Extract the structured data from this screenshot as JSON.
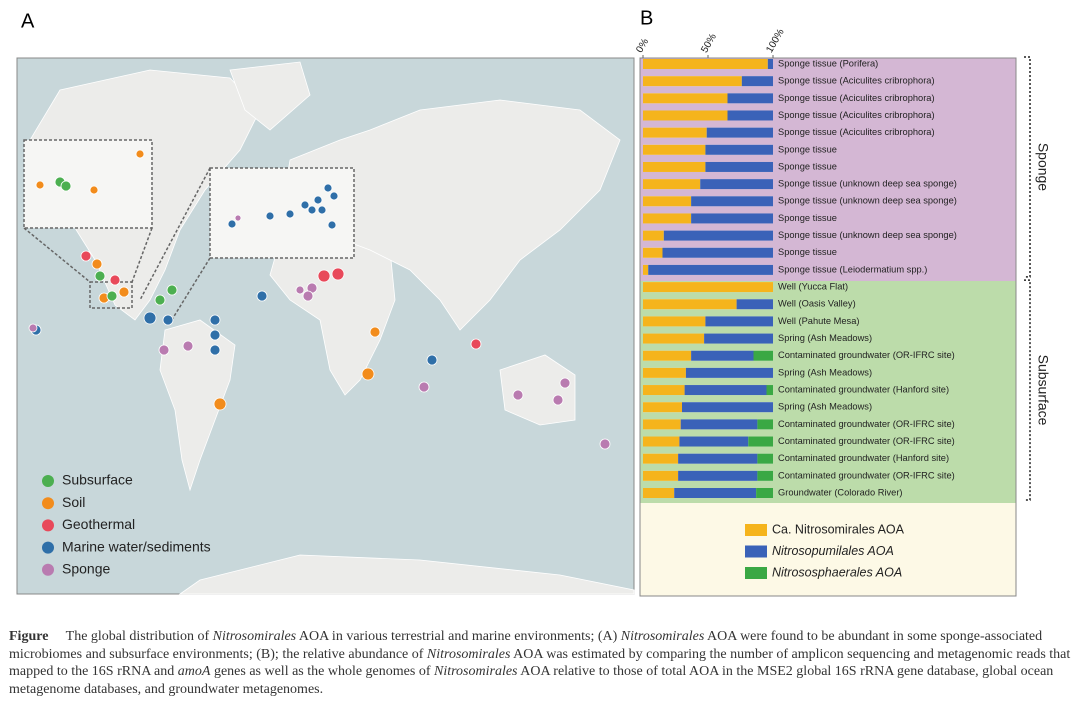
{
  "panel_a": {
    "label": "A",
    "legend": [
      {
        "name": "Subsurface",
        "color": "#4caf50"
      },
      {
        "name": "Soil",
        "color": "#f28c1c"
      },
      {
        "name": "Geothermal",
        "color": "#e8495a"
      },
      {
        "name": "Marine water/sediments",
        "color": "#2f6fa8"
      },
      {
        "name": "Sponge",
        "color": "#b97bb0"
      }
    ]
  },
  "chart_data": {
    "type": "stacked-barh",
    "label": "B",
    "categories": [
      "Sponge tissue (Porifera)",
      "Sponge tissue (Aciculites cribrophora)",
      "Sponge tissue (Aciculites cribrophora)",
      "Sponge tissue (Aciculites cribrophora)",
      "Sponge tissue (Aciculites cribrophora)",
      "Sponge tissue",
      "Sponge tissue",
      "Sponge tissue (unknown deep sea sponge)",
      "Sponge tissue (unknown deep sea sponge)",
      "Sponge tissue",
      "Sponge tissue (unknown deep sea sponge)",
      "Sponge tissue",
      "Sponge tissue (Leiodermatium spp.)",
      "Well (Yucca Flat)",
      "Well (Oasis Valley)",
      "Well (Pahute Mesa)",
      "Spring (Ash Meadows)",
      "Contaminated groundwater (OR-IFRC site)",
      "Spring (Ash Meadows)",
      "Contaminated groundwater (Hanford site)",
      "Spring (Ash Meadows)",
      "Contaminated groundwater (OR-IFRC site)",
      "Contaminated groundwater (OR-IFRC site)",
      "Contaminated groundwater (Hanford site)",
      "Contaminated groundwater (OR-IFRC site)",
      "Groundwater (Colorado River)"
    ],
    "series": [
      {
        "name": "Ca. Nitrosomirales AOA",
        "color": "#f5b41c",
        "values": [
          96,
          76,
          65,
          65,
          49,
          48,
          48,
          44,
          37,
          37,
          16,
          15,
          4,
          100,
          72,
          48,
          47,
          37,
          33,
          32,
          30,
          29,
          28,
          27,
          27,
          24
        ]
      },
      {
        "name": "Nitrosopumilales AOA",
        "color": "#3a62b8",
        "values": [
          4,
          24,
          35,
          35,
          51,
          52,
          52,
          56,
          63,
          63,
          84,
          85,
          96,
          0,
          28,
          52,
          53,
          48,
          67,
          63,
          70,
          59,
          53,
          61,
          61,
          63
        ]
      },
      {
        "name": "Nitrososphaerales AOA",
        "color": "#3aa844",
        "values": [
          0,
          0,
          0,
          0,
          0,
          0,
          0,
          0,
          0,
          0,
          0,
          0,
          0,
          0,
          0,
          0,
          0,
          15,
          0,
          5,
          0,
          12,
          19,
          12,
          12,
          13
        ]
      }
    ],
    "xlim": [
      0,
      100
    ],
    "xticks": [
      {
        "value": 0,
        "label": "0%"
      },
      {
        "value": 50,
        "label": "50%"
      },
      {
        "value": 100,
        "label": "100%"
      }
    ],
    "annotations": [
      "Sponge",
      "Subsurface"
    ]
  },
  "caption": [
    {
      "text": "Figure",
      "bold": true
    },
    {
      "text": "     The global distribution of "
    },
    {
      "text": "Nitrosomirales",
      "italic": true
    },
    {
      "text": " AOA in various terrestrial and marine environments; (A) "
    },
    {
      "text": "Nitrosomirales",
      "italic": true
    },
    {
      "text": " AOA were found to be abundant in some sponge-associated microbiomes and subsurface environments; (B); the relative abundance of "
    },
    {
      "text": "Nitrosomirales",
      "italic": true
    },
    {
      "text": " AOA was estimated by comparing the number of amplicon sequencing and metagenomic reads that mapped to the 16S rRNA and "
    },
    {
      "text": "amoA",
      "italic": true
    },
    {
      "text": " genes as well as the whole genomes of "
    },
    {
      "text": "Nitrosomirales",
      "italic": true
    },
    {
      "text": " AOA relative to those of total AOA in the MSE2 global 16S rRNA gene database, global ocean metagenome databases, and groundwater metagenomes."
    }
  ]
}
